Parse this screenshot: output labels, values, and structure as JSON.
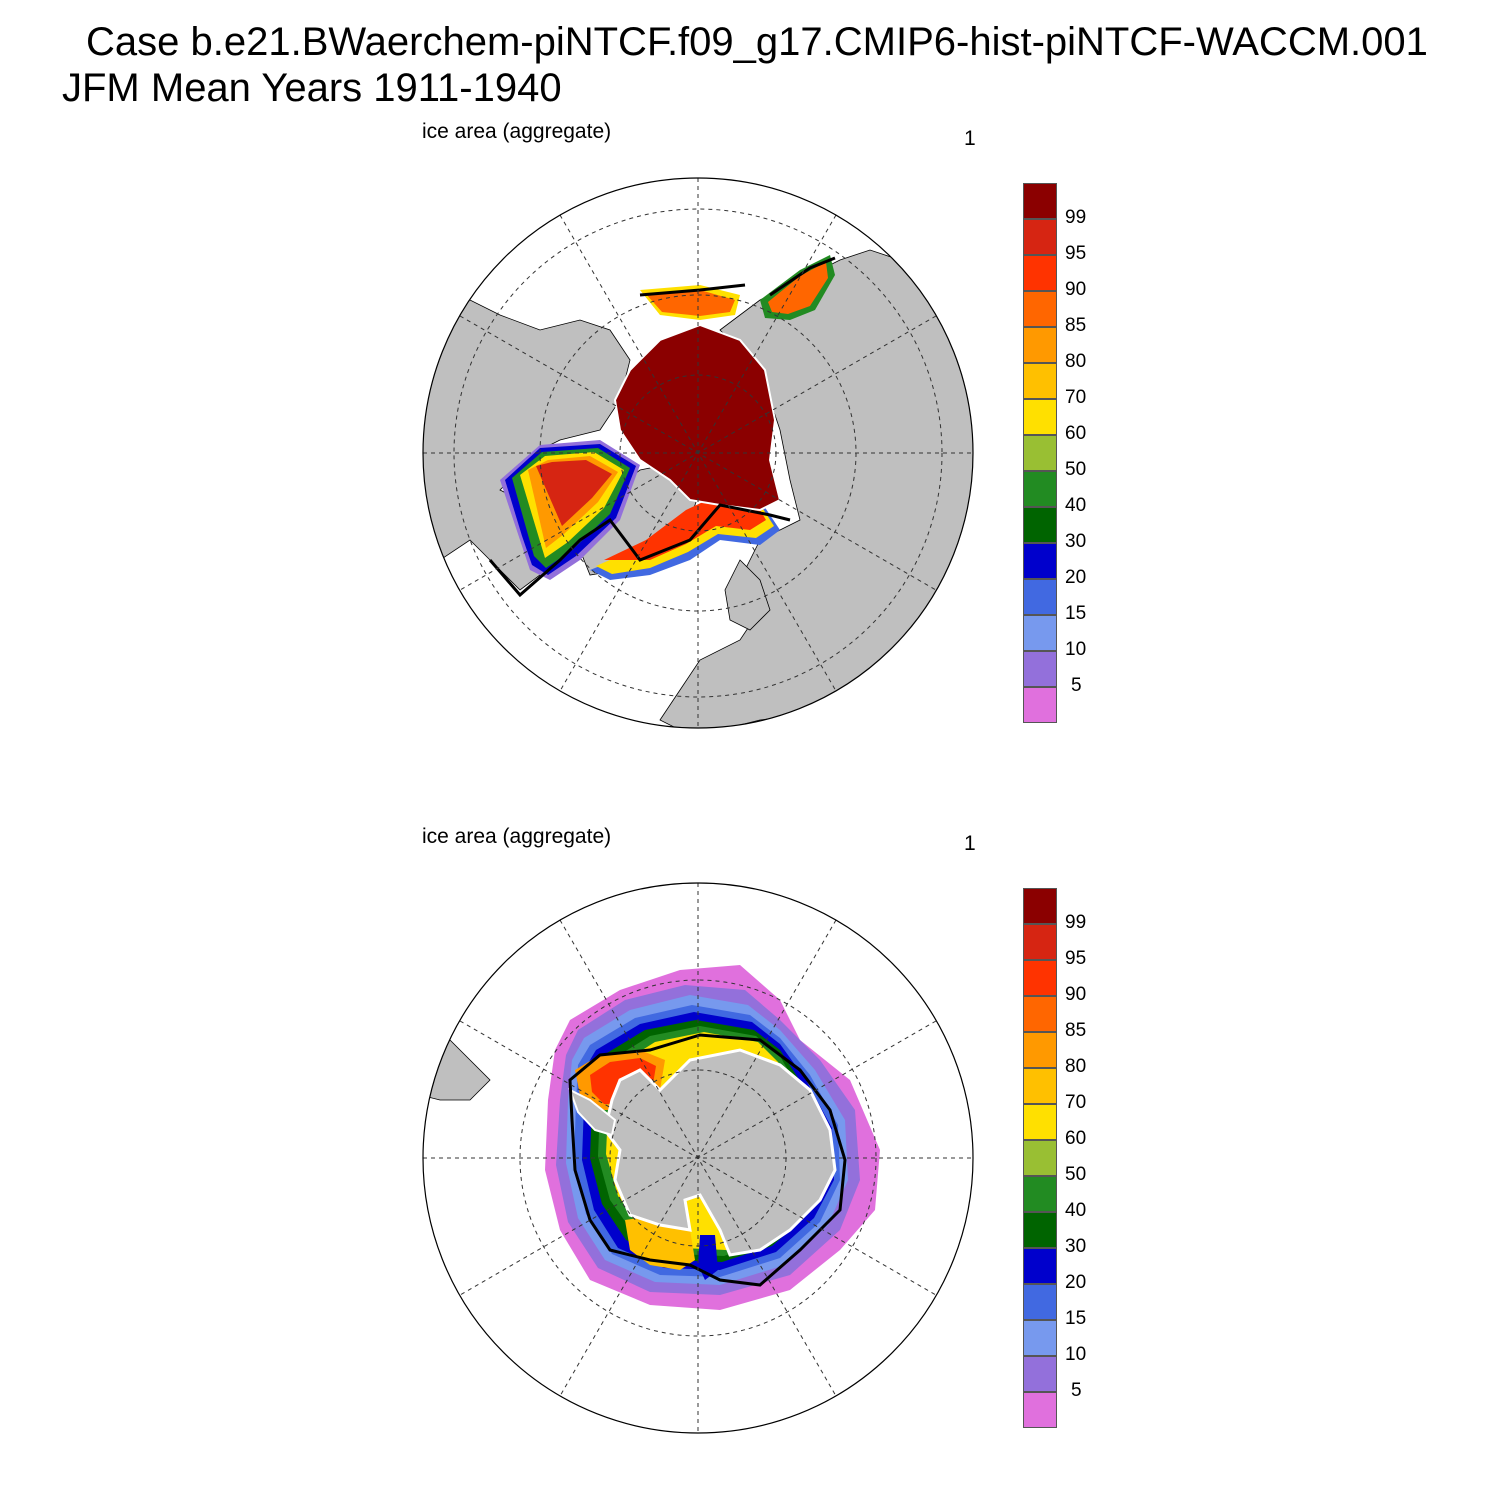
{
  "header": {
    "title_line1": "Case b.e21.BWaerchem-piNTCF.f09_g17.CMIP6-hist-piNTCF-WACCM.001",
    "title_line2": "JFM Mean    Years 1911-1940"
  },
  "colors": {
    "land": "#bfbfbf",
    "ocean": "#ffffff",
    "contour_line": "#000000",
    "grid_line": "#333333"
  },
  "colorbar": {
    "labels": [
      "99",
      "95",
      "90",
      "85",
      "80",
      "70",
      "60",
      "50",
      "40",
      "30",
      "20",
      "15",
      "10",
      "5"
    ],
    "colors": [
      "#8b0000",
      "#d62512",
      "#ff3300",
      "#ff6600",
      "#ff9900",
      "#ffc000",
      "#ffe000",
      "#99bf33",
      "#228b22",
      "#006400",
      "#0000cc",
      "#4169e1",
      "#7799ee",
      "#9370db",
      "#e070dd"
    ]
  },
  "panels": [
    {
      "id": "north",
      "variable_label": "ice area  (aggregate)",
      "panel_number": "1",
      "hemisphere": "Arctic"
    },
    {
      "id": "south",
      "variable_label": "ice area  (aggregate)",
      "panel_number": "1",
      "hemisphere": "Antarctic"
    }
  ]
}
